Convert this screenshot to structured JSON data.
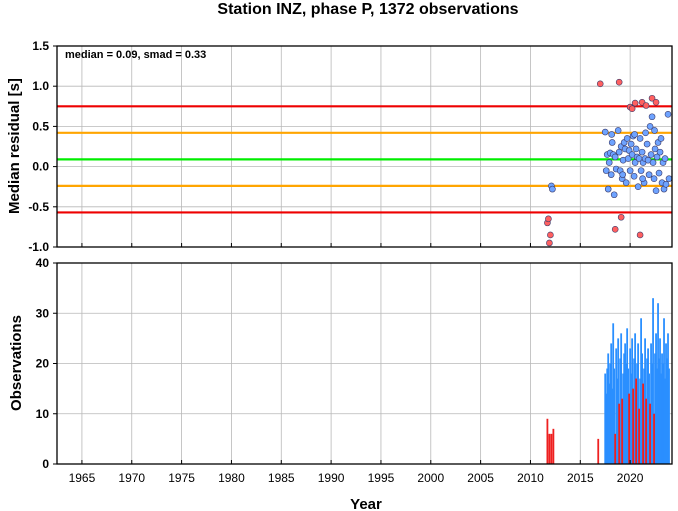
{
  "chart_data": [
    {
      "type": "scatter",
      "title": "Station INZ, phase P, 1372 observations",
      "ylabel": "Median residual [s]",
      "annotation": "median = 0.09, smad = 0.33",
      "xlim": [
        1962.5,
        2024.2
      ],
      "ylim": [
        -1.0,
        1.5
      ],
      "yticks": [
        "1.5",
        "1.0",
        "0.5",
        "0.0",
        "-0.5",
        "-1.0"
      ],
      "grid": true,
      "reference_lines": [
        {
          "y": 0.09,
          "color": "#00ee00"
        },
        {
          "y": 0.42,
          "color": "#ffa500"
        },
        {
          "y": -0.24,
          "color": "#ffa500"
        },
        {
          "y": 0.75,
          "color": "#ee0000"
        },
        {
          "y": -0.57,
          "color": "#ee0000"
        }
      ],
      "series": [
        {
          "color": "#6ea3ff",
          "points": [
            [
              2012.1,
              -0.24
            ],
            [
              2012.2,
              -0.28
            ],
            [
              2017.5,
              0.43
            ],
            [
              2017.6,
              -0.05
            ],
            [
              2017.7,
              0.15
            ],
            [
              2017.8,
              -0.28
            ],
            [
              2017.9,
              0.05
            ],
            [
              2018.0,
              0.17
            ],
            [
              2018.1,
              -0.1
            ],
            [
              2018.2,
              0.3
            ],
            [
              2018.3,
              0.15
            ],
            [
              2018.4,
              -0.35
            ],
            [
              2018.5,
              0.12
            ],
            [
              2018.6,
              -0.03
            ],
            [
              2018.8,
              0.45
            ],
            [
              2018.9,
              0.18
            ],
            [
              2019.0,
              -0.05
            ],
            [
              2019.1,
              0.25
            ],
            [
              2019.2,
              -0.15
            ],
            [
              2019.3,
              0.08
            ],
            [
              2019.4,
              0.3
            ],
            [
              2019.5,
              0.22
            ],
            [
              2019.6,
              -0.2
            ],
            [
              2019.7,
              0.35
            ],
            [
              2019.8,
              0.1
            ],
            [
              2019.9,
              0.2
            ],
            [
              2020.0,
              -0.05
            ],
            [
              2020.1,
              0.28
            ],
            [
              2020.2,
              0.15
            ],
            [
              2020.3,
              0.38
            ],
            [
              2020.4,
              -0.12
            ],
            [
              2020.5,
              0.05
            ],
            [
              2020.6,
              0.22
            ],
            [
              2020.7,
              0.12
            ],
            [
              2020.8,
              -0.25
            ],
            [
              2020.9,
              0.1
            ],
            [
              2021.0,
              0.35
            ],
            [
              2021.1,
              -0.05
            ],
            [
              2021.2,
              0.18
            ],
            [
              2021.3,
              0.05
            ],
            [
              2021.4,
              -0.2
            ],
            [
              2021.5,
              0.1
            ],
            [
              2021.7,
              0.28
            ],
            [
              2021.8,
              0.08
            ],
            [
              2021.9,
              -0.1
            ],
            [
              2022.0,
              0.5
            ],
            [
              2022.1,
              0.15
            ],
            [
              2022.2,
              0.62
            ],
            [
              2022.3,
              0.05
            ],
            [
              2022.4,
              -0.15
            ],
            [
              2022.5,
              0.22
            ],
            [
              2022.6,
              -0.3
            ],
            [
              2022.7,
              0.12
            ],
            [
              2022.8,
              0.3
            ],
            [
              2022.9,
              -0.08
            ],
            [
              2023.0,
              0.18
            ],
            [
              2023.1,
              0.35
            ],
            [
              2023.2,
              -0.2
            ],
            [
              2023.3,
              0.05
            ],
            [
              2023.4,
              -0.28
            ],
            [
              2023.5,
              0.1
            ],
            [
              2023.6,
              -0.22
            ],
            [
              2023.8,
              0.65
            ],
            [
              2023.9,
              -0.15
            ],
            [
              2020.45,
              0.4
            ],
            [
              2021.55,
              0.42
            ],
            [
              2022.45,
              0.45
            ],
            [
              2019.25,
              -0.1
            ],
            [
              2018.15,
              0.4
            ],
            [
              2021.25,
              -0.15
            ]
          ]
        },
        {
          "color": "#ff6060",
          "points": [
            [
              2011.7,
              -0.7
            ],
            [
              2011.8,
              -0.65
            ],
            [
              2011.9,
              -0.95
            ],
            [
              2012.0,
              -0.85
            ],
            [
              2017.0,
              1.03
            ],
            [
              2018.5,
              -0.78
            ],
            [
              2018.9,
              1.05
            ],
            [
              2019.1,
              -0.63
            ],
            [
              2020.0,
              0.74
            ],
            [
              2020.2,
              0.72
            ],
            [
              2020.5,
              0.79
            ],
            [
              2021.0,
              -0.85
            ],
            [
              2021.2,
              0.8
            ],
            [
              2021.6,
              0.76
            ],
            [
              2022.2,
              0.85
            ],
            [
              2022.6,
              0.8
            ]
          ]
        }
      ]
    },
    {
      "type": "bar",
      "ylabel": "Observations",
      "xlabel": "Year",
      "xlim": [
        1962.5,
        2024.2
      ],
      "ylim": [
        0,
        40
      ],
      "xticks": [
        "1965",
        "1970",
        "1975",
        "1980",
        "1985",
        "1990",
        "1995",
        "2000",
        "2005",
        "2010",
        "2015",
        "2020"
      ],
      "yticks": [
        "40",
        "30",
        "20",
        "10",
        "0"
      ],
      "grid": true,
      "series": [
        {
          "color": "#ee2020",
          "bars": [
            [
              2011.7,
              9
            ],
            [
              2011.9,
              6
            ],
            [
              2012.1,
              6
            ],
            [
              2012.3,
              7
            ],
            [
              2016.8,
              5
            ],
            [
              2018.5,
              6
            ],
            [
              2018.9,
              12
            ],
            [
              2019.2,
              13
            ],
            [
              2019.9,
              14
            ],
            [
              2020.3,
              15
            ],
            [
              2020.6,
              17
            ],
            [
              2020.9,
              11
            ],
            [
              2021.3,
              16
            ],
            [
              2021.6,
              13
            ],
            [
              2022.0,
              12
            ],
            [
              2022.4,
              10
            ]
          ]
        },
        {
          "color": "#2a8fff",
          "bars": [
            [
              2017.5,
              18
            ],
            [
              2017.6,
              14
            ],
            [
              2017.7,
              19
            ],
            [
              2017.8,
              22
            ],
            [
              2017.9,
              16
            ],
            [
              2018.0,
              20
            ],
            [
              2018.1,
              24
            ],
            [
              2018.2,
              15
            ],
            [
              2018.3,
              28
            ],
            [
              2018.4,
              19
            ],
            [
              2018.6,
              23
            ],
            [
              2018.7,
              17
            ],
            [
              2018.8,
              25
            ],
            [
              2019.0,
              21
            ],
            [
              2019.1,
              26
            ],
            [
              2019.3,
              18
            ],
            [
              2019.4,
              22
            ],
            [
              2019.5,
              24
            ],
            [
              2019.6,
              20
            ],
            [
              2019.7,
              27
            ],
            [
              2019.8,
              19
            ],
            [
              2020.0,
              23
            ],
            [
              2020.1,
              18
            ],
            [
              2020.2,
              25
            ],
            [
              2020.4,
              21
            ],
            [
              2020.5,
              26
            ],
            [
              2020.7,
              20
            ],
            [
              2020.8,
              24
            ],
            [
              2021.0,
              17
            ],
            [
              2021.1,
              29
            ],
            [
              2021.2,
              22
            ],
            [
              2021.4,
              19
            ],
            [
              2021.5,
              25
            ],
            [
              2021.7,
              21
            ],
            [
              2021.8,
              23
            ],
            [
              2021.9,
              18
            ],
            [
              2022.1,
              24
            ],
            [
              2022.2,
              20
            ],
            [
              2022.3,
              33
            ],
            [
              2022.5,
              22
            ],
            [
              2022.6,
              26
            ],
            [
              2022.7,
              19
            ],
            [
              2022.8,
              32
            ],
            [
              2022.9,
              21
            ],
            [
              2023.0,
              25
            ],
            [
              2023.1,
              18
            ],
            [
              2023.2,
              22
            ],
            [
              2023.3,
              20
            ],
            [
              2023.4,
              29
            ],
            [
              2023.5,
              17
            ],
            [
              2023.6,
              24
            ],
            [
              2023.7,
              21
            ],
            [
              2023.8,
              26
            ],
            [
              2023.9,
              19
            ]
          ]
        }
      ]
    }
  ]
}
